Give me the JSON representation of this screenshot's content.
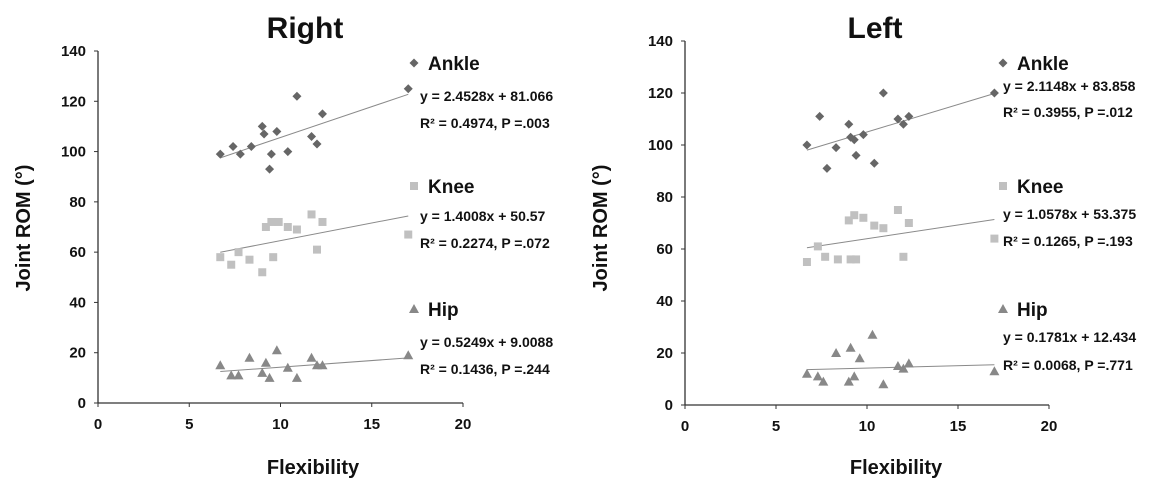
{
  "chart_data": [
    {
      "type": "scatter",
      "title": "Right",
      "xlabel": "Flexibility",
      "ylabel": "Joint ROM (°)",
      "xlim": [
        0,
        20
      ],
      "ylim": [
        0,
        140
      ],
      "xticks": [
        "0",
        "5",
        "10",
        "15",
        "20"
      ],
      "yticks": [
        "0",
        "20",
        "40",
        "60",
        "80",
        "100",
        "120",
        "140"
      ],
      "grid": false,
      "legend": "right",
      "series": [
        {
          "name": "Ankle",
          "marker": "diamond",
          "color": "#666666",
          "x": [
            6.7,
            7.4,
            7.8,
            8.4,
            9.0,
            9.1,
            9.4,
            9.5,
            9.8,
            10.4,
            10.9,
            11.7,
            12.0,
            12.3,
            17.0
          ],
          "y": [
            99,
            102,
            99,
            102,
            110,
            107,
            93,
            99,
            108,
            100,
            122,
            106,
            103,
            115,
            125
          ],
          "equation": "y = 2.4528x + 81.066",
          "stats": "R² = 0.4974, P =.003",
          "fit": {
            "slope": 2.4528,
            "intercept": 81.066
          }
        },
        {
          "name": "Knee",
          "marker": "square",
          "color": "#c0c0c0",
          "x": [
            6.7,
            7.3,
            7.7,
            8.3,
            9.0,
            9.2,
            9.5,
            9.6,
            9.9,
            10.4,
            10.9,
            11.7,
            12.0,
            12.3,
            17.0
          ],
          "y": [
            58,
            55,
            60,
            57,
            52,
            70,
            72,
            58,
            72,
            70,
            69,
            75,
            61,
            72,
            67
          ],
          "equation": "y = 1.4008x + 50.57",
          "stats": "R² = 0.2274, P =.072",
          "fit": {
            "slope": 1.4008,
            "intercept": 50.57
          }
        },
        {
          "name": "Hip",
          "marker": "triangle",
          "color": "#888888",
          "x": [
            6.7,
            7.3,
            7.7,
            8.3,
            9.0,
            9.2,
            9.4,
            9.8,
            10.4,
            10.9,
            11.7,
            12.0,
            12.3,
            17.0
          ],
          "y": [
            15,
            11,
            11,
            18,
            12,
            16,
            10,
            21,
            14,
            10,
            18,
            15,
            15,
            19
          ],
          "equation": "y = 0.5249x + 9.0088",
          "stats": "R² = 0.1436, P =.244",
          "fit": {
            "slope": 0.5249,
            "intercept": 9.0088
          }
        }
      ]
    },
    {
      "type": "scatter",
      "title": "Left",
      "xlabel": "Flexibility",
      "ylabel": "Joint ROM (°)",
      "xlim": [
        0,
        20
      ],
      "ylim": [
        0,
        140
      ],
      "xticks": [
        "0",
        "5",
        "10",
        "15",
        "20"
      ],
      "yticks": [
        "0",
        "20",
        "40",
        "60",
        "80",
        "100",
        "120",
        "140"
      ],
      "grid": false,
      "legend": "right",
      "series": [
        {
          "name": "Ankle",
          "marker": "diamond",
          "color": "#666666",
          "x": [
            6.7,
            7.4,
            7.8,
            8.3,
            9.0,
            9.1,
            9.3,
            9.4,
            9.8,
            10.4,
            10.9,
            11.7,
            12.0,
            12.3,
            17.0
          ],
          "y": [
            100,
            111,
            91,
            99,
            108,
            103,
            102,
            96,
            104,
            93,
            120,
            110,
            108,
            111,
            120
          ],
          "equation": "y = 2.1148x + 83.858",
          "stats": "R² = 0.3955, P =.012",
          "fit": {
            "slope": 2.1148,
            "intercept": 83.858
          }
        },
        {
          "name": "Knee",
          "marker": "square",
          "color": "#c0c0c0",
          "x": [
            6.7,
            7.3,
            7.7,
            8.4,
            9.0,
            9.1,
            9.3,
            9.4,
            9.8,
            10.4,
            10.9,
            11.7,
            12.0,
            12.3,
            17.0
          ],
          "y": [
            55,
            61,
            57,
            56,
            71,
            56,
            73,
            56,
            72,
            69,
            68,
            75,
            57,
            70,
            64
          ],
          "equation": "y = 1.0578x + 53.375",
          "stats": "R² = 0.1265, P =.193",
          "fit": {
            "slope": 1.0578,
            "intercept": 53.375
          }
        },
        {
          "name": "Hip",
          "marker": "triangle",
          "color": "#888888",
          "x": [
            6.7,
            7.3,
            7.6,
            8.3,
            9.0,
            9.1,
            9.3,
            9.6,
            10.3,
            10.9,
            11.7,
            12.0,
            12.3,
            17.0
          ],
          "y": [
            12,
            11,
            9,
            20,
            9,
            22,
            11,
            18,
            27,
            8,
            15,
            14,
            16,
            13
          ],
          "equation": "y = 0.1781x + 12.434",
          "stats": "R² = 0.0068, P =.771",
          "fit": {
            "slope": 0.1781,
            "intercept": 12.434
          }
        }
      ]
    }
  ]
}
